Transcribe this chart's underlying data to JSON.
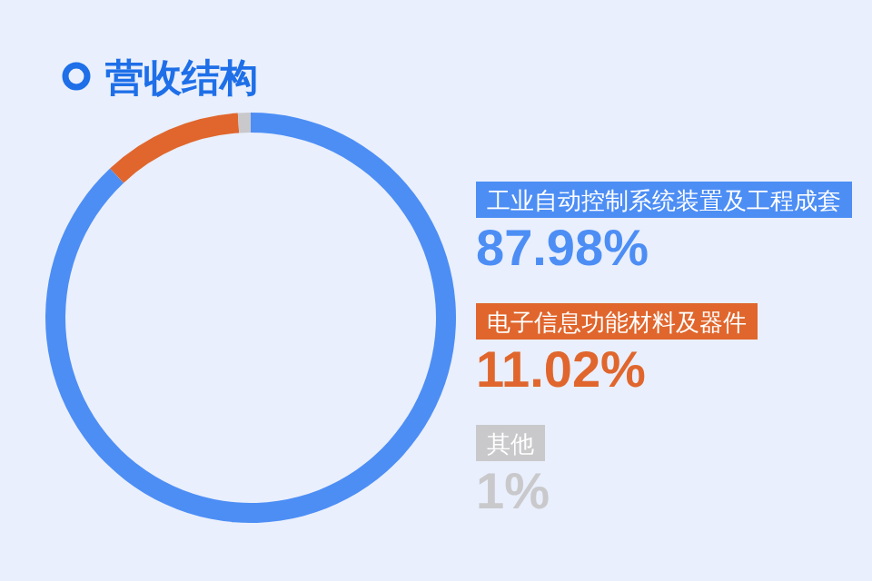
{
  "chart_data": {
    "type": "donut",
    "title": "营收结构",
    "categories": [
      "工业自动控制系统装置及工程成套",
      "电子信息功能材料及器件",
      "其他"
    ],
    "values": [
      87.98,
      11.02,
      1
    ],
    "value_labels": [
      "87.98%",
      "11.02%",
      "1%"
    ],
    "colors": [
      "#4d8ef5",
      "#e0662d",
      "#c9c9cc"
    ],
    "legend": "right"
  }
}
